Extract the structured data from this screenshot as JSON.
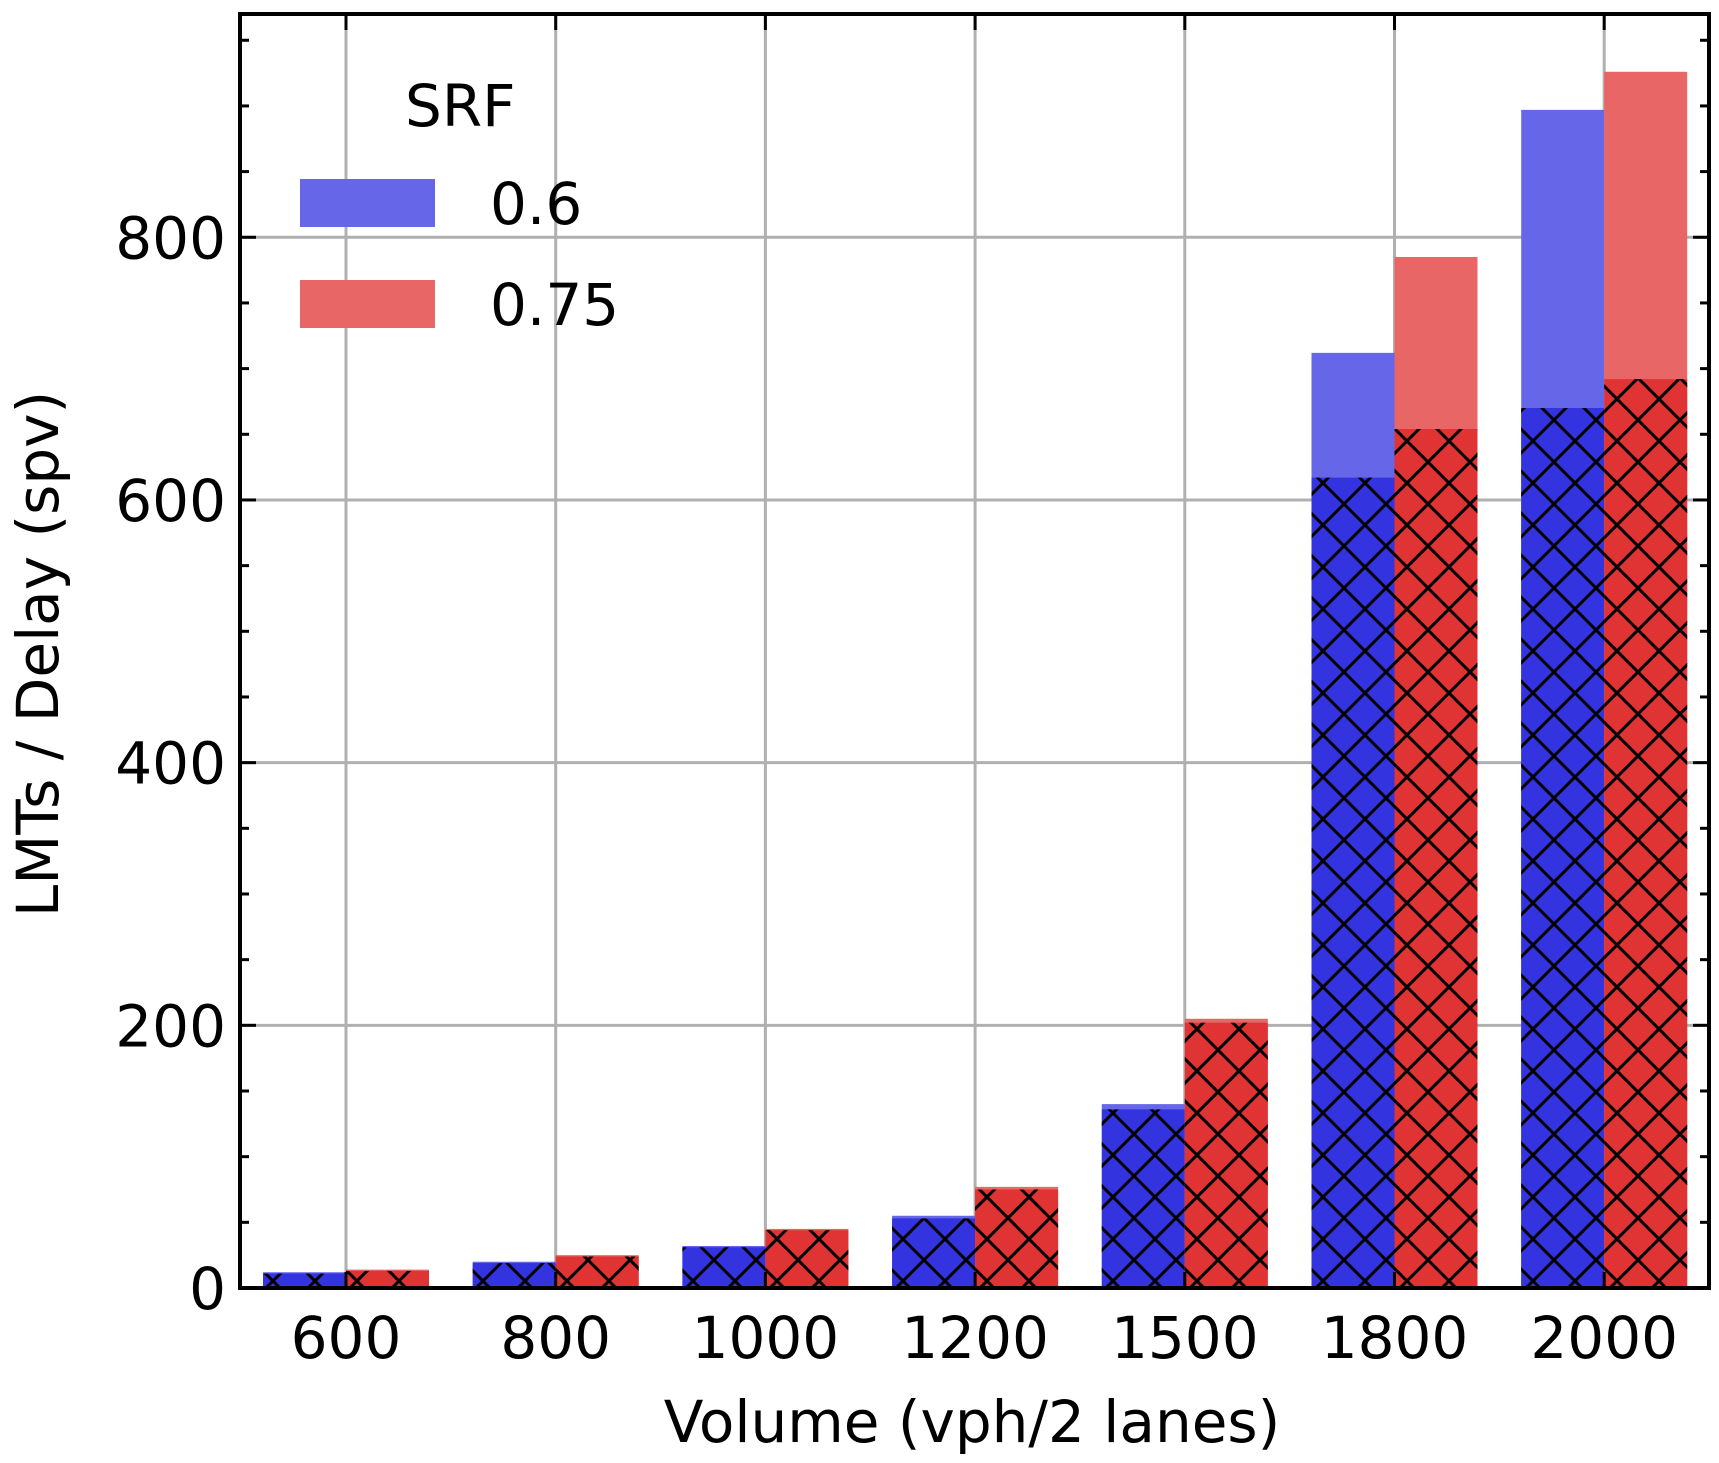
{
  "chart_data": {
    "type": "bar",
    "title": "",
    "xlabel": "Volume (vph/2 lanes)",
    "ylabel": "LMTs / Delay (spv)",
    "categories": [
      "600",
      "800",
      "1000",
      "1200",
      "1500",
      "1800",
      "2000"
    ],
    "ylim": [
      0,
      970
    ],
    "yticks": [
      0,
      200,
      400,
      600,
      800
    ],
    "grid": true,
    "legend": {
      "title": "SRF",
      "position": "top-left"
    },
    "series": [
      {
        "name": "0.6",
        "color": "#3333e0",
        "light_color": "#6666e8",
        "total": [
          12,
          20,
          32,
          55,
          140,
          712,
          897
        ],
        "hatched": [
          11,
          19,
          31,
          53,
          136,
          617,
          670
        ]
      },
      {
        "name": "0.75",
        "color": "#e03333",
        "light_color": "#e86666",
        "total": [
          14,
          25,
          45,
          77,
          205,
          785,
          926
        ],
        "hatched": [
          13,
          24,
          44,
          75,
          202,
          654,
          692
        ]
      }
    ],
    "hatch_pattern": "crosshatch"
  }
}
